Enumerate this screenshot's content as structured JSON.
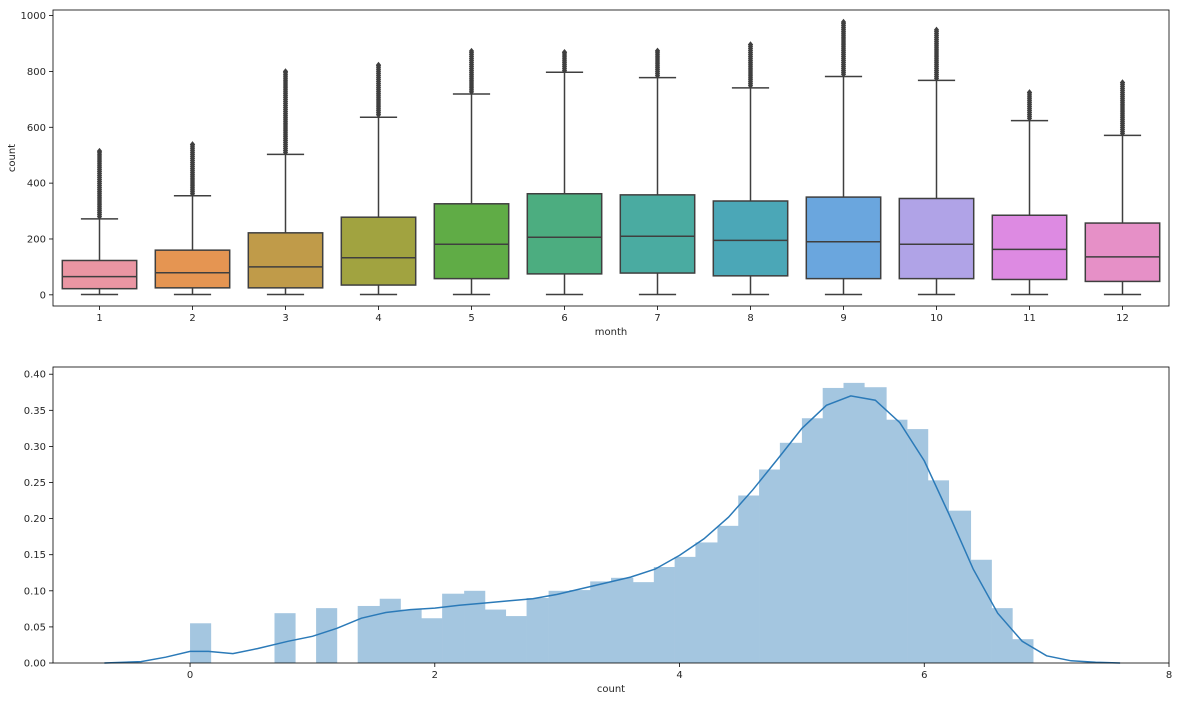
{
  "chart_data": [
    {
      "type": "box",
      "xlabel": "month",
      "ylabel": "count",
      "categories": [
        "1",
        "2",
        "3",
        "4",
        "5",
        "6",
        "7",
        "8",
        "9",
        "10",
        "11",
        "12"
      ],
      "ylim": [
        -40,
        1020
      ],
      "yticks": [
        0,
        200,
        400,
        600,
        800,
        1000
      ],
      "grid": false,
      "boxes": [
        {
          "category": "1",
          "min": 1,
          "q1": 22,
          "median": 65,
          "q3": 123,
          "whisker_high": 272,
          "outliers_range": [
            280,
            515
          ],
          "color": "#ea96a3"
        },
        {
          "category": "2",
          "min": 1,
          "q1": 25,
          "median": 79,
          "q3": 160,
          "whisker_high": 355,
          "outliers_range": [
            362,
            539
          ],
          "color": "#e59552"
        },
        {
          "category": "3",
          "min": 1,
          "q1": 25,
          "median": 100,
          "q3": 222,
          "whisker_high": 503,
          "outliers_range": [
            510,
            800
          ],
          "color": "#c09b49"
        },
        {
          "category": "4",
          "min": 1,
          "q1": 35,
          "median": 133,
          "q3": 278,
          "whisker_high": 636,
          "outliers_range": [
            645,
            823
          ],
          "color": "#a1a340"
        },
        {
          "category": "5",
          "min": 1,
          "q1": 58,
          "median": 181,
          "q3": 326,
          "whisker_high": 719,
          "outliers_range": [
            727,
            873
          ],
          "color": "#60ac46"
        },
        {
          "category": "6",
          "min": 1,
          "q1": 75,
          "median": 206,
          "q3": 362,
          "whisker_high": 797,
          "outliers_range": [
            803,
            869
          ],
          "color": "#4cad80"
        },
        {
          "category": "7",
          "min": 1,
          "q1": 78,
          "median": 210,
          "q3": 358,
          "whisker_high": 778,
          "outliers_range": [
            785,
            874
          ],
          "color": "#4aaba1"
        },
        {
          "category": "8",
          "min": 1,
          "q1": 68,
          "median": 195,
          "q3": 336,
          "whisker_high": 741,
          "outliers_range": [
            749,
            896
          ],
          "color": "#4ba7b7"
        },
        {
          "category": "9",
          "min": 1,
          "q1": 58,
          "median": 190,
          "q3": 350,
          "whisker_high": 782,
          "outliers_range": [
            790,
            977
          ],
          "color": "#6aa6de"
        },
        {
          "category": "10",
          "min": 1,
          "q1": 58,
          "median": 181,
          "q3": 345,
          "whisker_high": 768,
          "outliers_range": [
            775,
            949
          ],
          "color": "#b0a3e7"
        },
        {
          "category": "11",
          "min": 1,
          "q1": 55,
          "median": 163,
          "q3": 285,
          "whisker_high": 624,
          "outliers_range": [
            632,
            725
          ],
          "color": "#dd8ae2"
        },
        {
          "category": "12",
          "min": 1,
          "q1": 48,
          "median": 136,
          "q3": 257,
          "whisker_high": 571,
          "outliers_range": [
            578,
            760
          ],
          "color": "#e690c7"
        }
      ]
    },
    {
      "type": "histogram",
      "xlabel": "count",
      "ylabel": "",
      "xlim": [
        -1.12,
        8
      ],
      "ylim": [
        0,
        0.41
      ],
      "xticks": [
        0,
        2,
        4,
        6,
        8
      ],
      "yticks": [
        "0.00",
        "0.05",
        "0.10",
        "0.15",
        "0.20",
        "0.25",
        "0.30",
        "0.35",
        "0.40"
      ],
      "grid": false,
      "bar_color": "#a4c6e0",
      "line_color": "#2b7ab8",
      "bins": [
        {
          "x0": 0.0,
          "x1": 0.17,
          "height": 0.055
        },
        {
          "x0": 0.69,
          "x1": 0.86,
          "height": 0.069
        },
        {
          "x0": 1.03,
          "x1": 1.2,
          "height": 0.076
        },
        {
          "x0": 1.37,
          "x1": 1.55,
          "height": 0.079
        },
        {
          "x0": 1.55,
          "x1": 1.72,
          "height": 0.089
        },
        {
          "x0": 1.72,
          "x1": 1.89,
          "height": 0.074
        },
        {
          "x0": 1.89,
          "x1": 2.06,
          "height": 0.062
        },
        {
          "x0": 2.06,
          "x1": 2.24,
          "height": 0.096
        },
        {
          "x0": 2.24,
          "x1": 2.41,
          "height": 0.1
        },
        {
          "x0": 2.41,
          "x1": 2.58,
          "height": 0.074
        },
        {
          "x0": 2.58,
          "x1": 2.75,
          "height": 0.065
        },
        {
          "x0": 2.75,
          "x1": 2.93,
          "height": 0.09
        },
        {
          "x0": 2.93,
          "x1": 3.1,
          "height": 0.1
        },
        {
          "x0": 3.1,
          "x1": 3.27,
          "height": 0.101
        },
        {
          "x0": 3.27,
          "x1": 3.44,
          "height": 0.113
        },
        {
          "x0": 3.44,
          "x1": 3.62,
          "height": 0.118
        },
        {
          "x0": 3.62,
          "x1": 3.79,
          "height": 0.112
        },
        {
          "x0": 3.79,
          "x1": 3.96,
          "height": 0.133
        },
        {
          "x0": 3.96,
          "x1": 4.13,
          "height": 0.147
        },
        {
          "x0": 4.13,
          "x1": 4.31,
          "height": 0.167
        },
        {
          "x0": 4.31,
          "x1": 4.48,
          "height": 0.19
        },
        {
          "x0": 4.48,
          "x1": 4.65,
          "height": 0.232
        },
        {
          "x0": 4.65,
          "x1": 4.82,
          "height": 0.268
        },
        {
          "x0": 4.82,
          "x1": 5.0,
          "height": 0.305
        },
        {
          "x0": 5.0,
          "x1": 5.17,
          "height": 0.339
        },
        {
          "x0": 5.17,
          "x1": 5.34,
          "height": 0.381
        },
        {
          "x0": 5.34,
          "x1": 5.51,
          "height": 0.388
        },
        {
          "x0": 5.51,
          "x1": 5.69,
          "height": 0.382
        },
        {
          "x0": 5.69,
          "x1": 5.86,
          "height": 0.337
        },
        {
          "x0": 5.86,
          "x1": 6.03,
          "height": 0.324
        },
        {
          "x0": 6.03,
          "x1": 6.2,
          "height": 0.253
        },
        {
          "x0": 6.2,
          "x1": 6.38,
          "height": 0.211
        },
        {
          "x0": 6.38,
          "x1": 6.55,
          "height": 0.143
        },
        {
          "x0": 6.55,
          "x1": 6.72,
          "height": 0.076
        },
        {
          "x0": 6.72,
          "x1": 6.89,
          "height": 0.033
        }
      ],
      "kde": [
        [
          -0.7,
          0.0
        ],
        [
          -0.4,
          0.002
        ],
        [
          -0.2,
          0.008
        ],
        [
          0.0,
          0.016
        ],
        [
          0.15,
          0.016
        ],
        [
          0.35,
          0.013
        ],
        [
          0.55,
          0.02
        ],
        [
          0.8,
          0.03
        ],
        [
          1.0,
          0.037
        ],
        [
          1.2,
          0.048
        ],
        [
          1.4,
          0.062
        ],
        [
          1.6,
          0.07
        ],
        [
          1.8,
          0.074
        ],
        [
          2.0,
          0.076
        ],
        [
          2.2,
          0.08
        ],
        [
          2.4,
          0.083
        ],
        [
          2.6,
          0.086
        ],
        [
          2.8,
          0.089
        ],
        [
          3.0,
          0.095
        ],
        [
          3.2,
          0.103
        ],
        [
          3.4,
          0.111
        ],
        [
          3.6,
          0.119
        ],
        [
          3.8,
          0.13
        ],
        [
          4.0,
          0.149
        ],
        [
          4.2,
          0.172
        ],
        [
          4.4,
          0.202
        ],
        [
          4.6,
          0.24
        ],
        [
          4.8,
          0.282
        ],
        [
          5.0,
          0.325
        ],
        [
          5.2,
          0.357
        ],
        [
          5.4,
          0.37
        ],
        [
          5.6,
          0.364
        ],
        [
          5.8,
          0.333
        ],
        [
          6.0,
          0.28
        ],
        [
          6.2,
          0.207
        ],
        [
          6.4,
          0.13
        ],
        [
          6.6,
          0.069
        ],
        [
          6.8,
          0.03
        ],
        [
          7.0,
          0.01
        ],
        [
          7.2,
          0.003
        ],
        [
          7.4,
          0.001
        ],
        [
          7.6,
          0.0
        ]
      ]
    }
  ]
}
